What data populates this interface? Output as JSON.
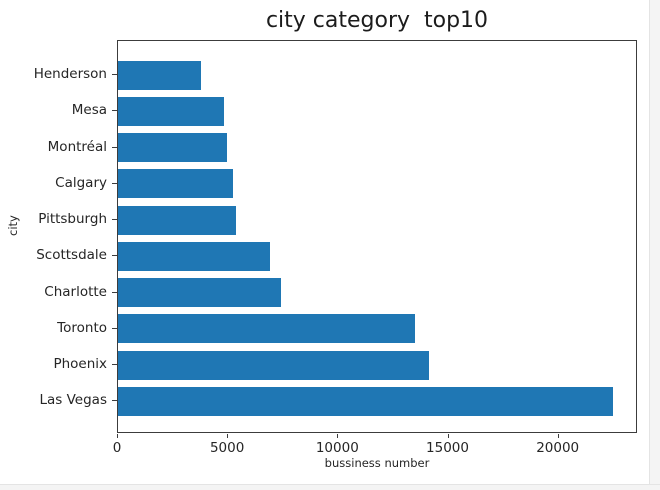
{
  "title": "city category  top10",
  "chart_data": {
    "type": "bar",
    "orientation": "horizontal",
    "title": "city category  top10",
    "xlabel": "bussiness number",
    "ylabel": "city",
    "categories": [
      "Henderson",
      "Mesa",
      "Montréal",
      "Calgary",
      "Pittsburgh",
      "Scottsdale",
      "Charlotte",
      "Toronto",
      "Phoenix",
      "Las Vegas"
    ],
    "values": [
      3750,
      4830,
      4940,
      5240,
      5350,
      6900,
      7400,
      13500,
      14100,
      22450
    ],
    "xticks": [
      0,
      5000,
      10000,
      15000,
      20000
    ],
    "xlim": [
      0,
      23600
    ],
    "bar_color": "#1f77b4",
    "grid": false,
    "legend": false
  },
  "layout_colors": {
    "spine": "#3c3c3c",
    "text": "#262626",
    "window_margin": "#f4f4f4"
  }
}
